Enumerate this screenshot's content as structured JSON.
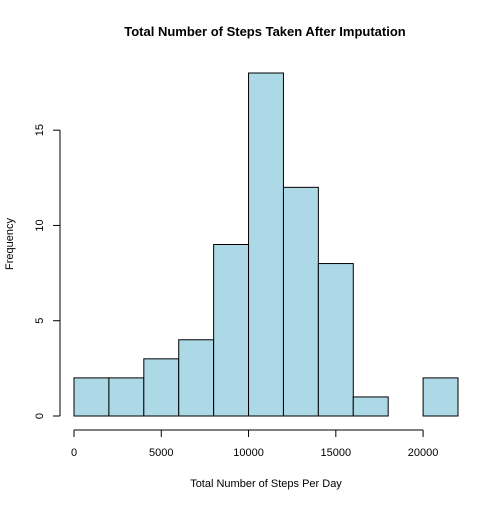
{
  "chart_data": {
    "type": "bar",
    "title": "Total Number of Steps Taken After Imputation",
    "xlabel": "Total Number of Steps Per Day",
    "ylabel": "Frequency",
    "bins": [
      {
        "from": 0,
        "to": 2000,
        "count": 2
      },
      {
        "from": 2000,
        "to": 4000,
        "count": 2
      },
      {
        "from": 4000,
        "to": 6000,
        "count": 3
      },
      {
        "from": 6000,
        "to": 8000,
        "count": 4
      },
      {
        "from": 8000,
        "to": 10000,
        "count": 9
      },
      {
        "from": 10000,
        "to": 12000,
        "count": 18
      },
      {
        "from": 12000,
        "to": 14000,
        "count": 12
      },
      {
        "from": 14000,
        "to": 16000,
        "count": 8
      },
      {
        "from": 16000,
        "to": 18000,
        "count": 1
      },
      {
        "from": 18000,
        "to": 20000,
        "count": 0
      },
      {
        "from": 20000,
        "to": 22000,
        "count": 2
      }
    ],
    "xlim": [
      0,
      22000
    ],
    "ylim": [
      0,
      18
    ],
    "x_ticks": [
      0,
      5000,
      10000,
      15000,
      20000
    ],
    "y_ticks": [
      0,
      5,
      10,
      15
    ],
    "bar_color": "#add8e6",
    "grid": false,
    "legend": "none"
  }
}
